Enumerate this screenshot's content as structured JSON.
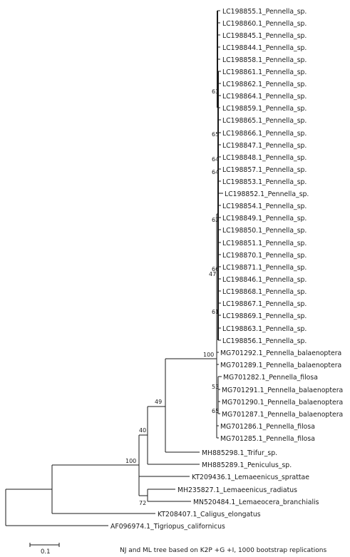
{
  "taxa": [
    "LC198855.1_Pennella_sp.",
    "LC198860.1_Pennella_sp.",
    "LC198845.1_Pennella_sp.",
    "LC198844.1_Pennella_sp.",
    "LC198858.1_Pennella_sp.",
    "LC198861.1_Pennella_sp.",
    "LC198862.1_Pennella_sp.",
    "LC198864.1_Pennella_sp.",
    "LC198859.1_Pennella_sp.",
    "LC198865.1_Pennella_sp.",
    "LC198866.1_Pennella_sp.",
    "LC198847.1_Pennella_sp.",
    "LC198848.1_Pennella_sp.",
    "LC198857.1_Pennella_sp.",
    "LC198853.1_Pennella_sp.",
    "LC198852.1_Pennella_sp.",
    "LC198854.1_Pennella_sp.",
    "LC198849.1_Pennella_sp.",
    "LC198850.1_Pennella_sp.",
    "LC198851.1_Pennella_sp.",
    "LC198870.1_Pennella_sp.",
    "LC198871.1_Pennella_sp.",
    "LC198846.1_Pennella_sp.",
    "LC198868.1_Pennella_sp.",
    "LC198867.1_Pennella_sp.",
    "LC198869.1_Pennella_sp.",
    "LC198863.1_Pennella_sp.",
    "LC198856.1_Pennella_sp.",
    "MG701292.1_Pennella_balaenoptera",
    "MG701289.1_Pennella_balaenoptera",
    "MG701282.1_Pennella_filosa",
    "MG701291.1_Pennella_balaenoptera",
    "MG701290.1_Pennella_balaenoptera",
    "MG701287.1_Pennella_balaenoptera",
    "MG701286.1_Pennella_filosa",
    "MG701285.1_Pennella_filosa",
    "MH885298.1_Trifur_sp.",
    "MH885289.1_Peniculus_sp.",
    "KT209436.1_Lemaeenicus_sprattae",
    "MH235827.1_Lemaeenicus_radiatus",
    "MN520484.1_Lemaeocera_branchialis",
    "KT208407.1_Caligus_elongatus",
    "AF096974.1_Tigriopus_californicus"
  ],
  "support": [
    "63",
    "65",
    "64",
    "64",
    "62",
    "66",
    "47",
    "61",
    "100",
    "53",
    "65",
    "49",
    "40",
    "100",
    "72"
  ],
  "scale": {
    "label": "0.1",
    "length": 0.1
  },
  "caption": "NJ and ML tree based on K2P +G +I, 1000 bootstrap replications"
}
